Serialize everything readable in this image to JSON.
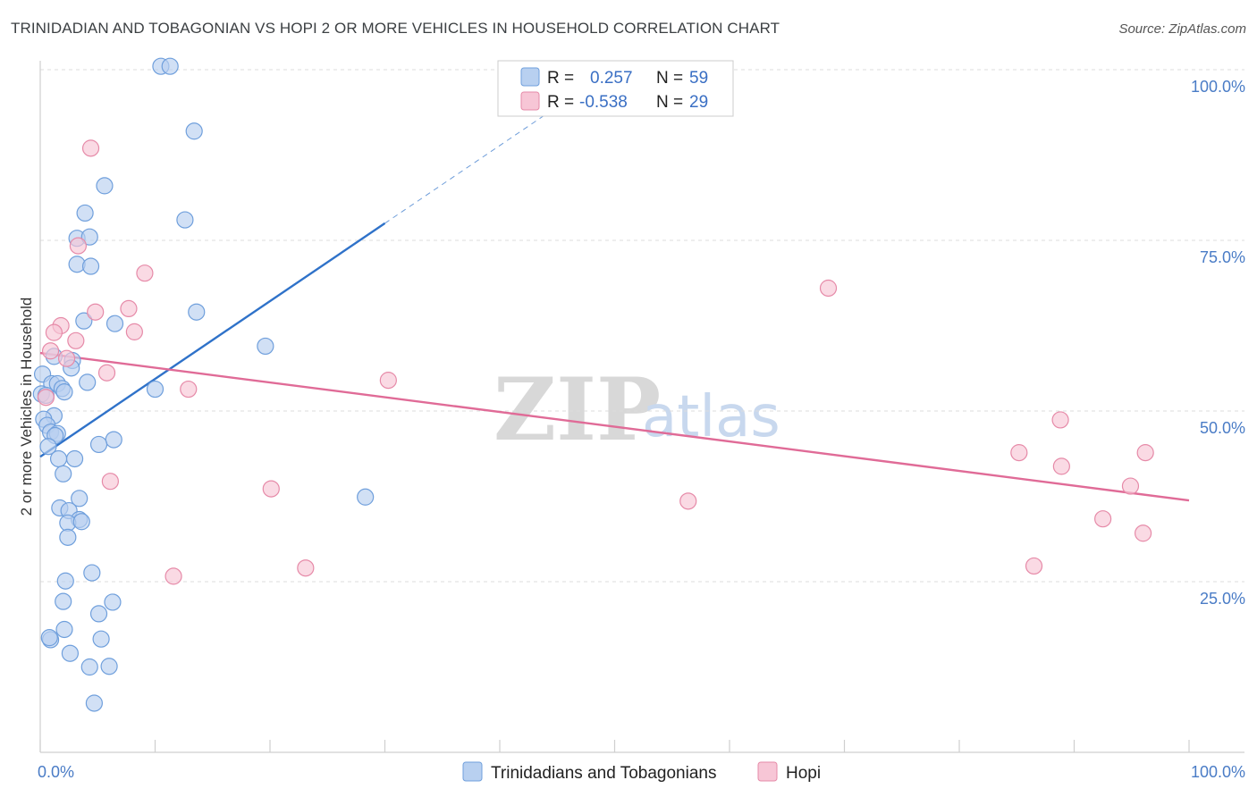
{
  "title": "TRINIDADIAN AND TOBAGONIAN VS HOPI 2 OR MORE VEHICLES IN HOUSEHOLD CORRELATION CHART",
  "source": "Source: ZipAtlas.com",
  "watermark": {
    "zip": "ZIP",
    "atlas": "atlas"
  },
  "colors": {
    "blue_fill": "#b8d0f0",
    "blue_stroke": "#6f9fdc",
    "blue_line": "#2f72c9",
    "pink_fill": "#f7c6d6",
    "pink_stroke": "#e68aa8",
    "pink_line": "#e06b97",
    "grid": "#dddddd",
    "tick_label": "#4a7cc6"
  },
  "chart_data": {
    "type": "scatter",
    "ylabel": "2 or more Vehicles in Household",
    "xlim": [
      0,
      100
    ],
    "ylim": [
      0,
      100
    ],
    "x_tick_labels": [
      "0.0%",
      "100.0%"
    ],
    "y_ticks": [
      {
        "value": 25,
        "label": "25.0%"
      },
      {
        "value": 50,
        "label": "50.0%"
      },
      {
        "value": 75,
        "label": "75.0%"
      },
      {
        "value": 100,
        "label": "100.0%"
      }
    ],
    "legend": [
      {
        "r_label": "R =",
        "r_value": "0.257",
        "n_label": "N =",
        "n_value": "59"
      },
      {
        "r_label": "R =",
        "r_value": "-0.538",
        "n_label": "N =",
        "n_value": "29"
      }
    ],
    "series": [
      {
        "name": "Trinidadians and Tobagonians",
        "color": "blue",
        "trend": {
          "x0": 0,
          "y0": 43.3,
          "x1": 30,
          "y1": 77.5,
          "dash_x1": 48,
          "dash_y1": 98
        },
        "points": [
          [
            10.5,
            100.5
          ],
          [
            11.3,
            100.5
          ],
          [
            13.4,
            91
          ],
          [
            5.6,
            83
          ],
          [
            3.9,
            79
          ],
          [
            12.6,
            78
          ],
          [
            3.2,
            75.3
          ],
          [
            4.3,
            75.5
          ],
          [
            3.2,
            71.5
          ],
          [
            4.4,
            71.2
          ],
          [
            13.6,
            64.5
          ],
          [
            3.8,
            63.2
          ],
          [
            6.5,
            62.8
          ],
          [
            19.6,
            59.5
          ],
          [
            1.2,
            58
          ],
          [
            2.8,
            57.4
          ],
          [
            2.7,
            56.3
          ],
          [
            0.2,
            55.4
          ],
          [
            4.1,
            54.2
          ],
          [
            1.0,
            54
          ],
          [
            1.5,
            54
          ],
          [
            1.9,
            53.3
          ],
          [
            2.1,
            52.8
          ],
          [
            10,
            53.2
          ],
          [
            0.1,
            52.5
          ],
          [
            0.5,
            52.3
          ],
          [
            1.2,
            49.3
          ],
          [
            0.3,
            48.8
          ],
          [
            0.6,
            47.9
          ],
          [
            0.9,
            46.9
          ],
          [
            1.5,
            46.7
          ],
          [
            1.3,
            46.4
          ],
          [
            6.4,
            45.8
          ],
          [
            5.1,
            45.1
          ],
          [
            0.7,
            44.8
          ],
          [
            1.6,
            43
          ],
          [
            3.0,
            43
          ],
          [
            2.0,
            40.8
          ],
          [
            3.4,
            37.2
          ],
          [
            28.3,
            37.4
          ],
          [
            1.7,
            35.8
          ],
          [
            2.5,
            35.4
          ],
          [
            3.4,
            34.1
          ],
          [
            2.4,
            33.6
          ],
          [
            2.4,
            31.5
          ],
          [
            4.5,
            26.3
          ],
          [
            2.2,
            25.1
          ],
          [
            2.0,
            22.1
          ],
          [
            6.3,
            22
          ],
          [
            5.1,
            20.3
          ],
          [
            2.1,
            18
          ],
          [
            0.9,
            16.5
          ],
          [
            5.3,
            16.6
          ],
          [
            2.6,
            14.5
          ],
          [
            6.0,
            12.6
          ],
          [
            4.3,
            12.5
          ],
          [
            4.7,
            7.2
          ],
          [
            0.8,
            16.8
          ],
          [
            3.6,
            33.8
          ]
        ]
      },
      {
        "name": "Hopi",
        "color": "pink",
        "trend": {
          "x0": 0,
          "y0": 58.5,
          "x1": 100,
          "y1": 36.9
        },
        "points": [
          [
            4.4,
            88.5
          ],
          [
            3.3,
            74.2
          ],
          [
            9.1,
            70.2
          ],
          [
            68.6,
            68
          ],
          [
            7.7,
            65
          ],
          [
            4.8,
            64.5
          ],
          [
            1.8,
            62.5
          ],
          [
            1.2,
            61.5
          ],
          [
            8.2,
            61.6
          ],
          [
            3.1,
            60.3
          ],
          [
            0.9,
            58.8
          ],
          [
            2.3,
            57.7
          ],
          [
            5.8,
            55.6
          ],
          [
            30.3,
            54.5
          ],
          [
            12.9,
            53.2
          ],
          [
            0.5,
            52
          ],
          [
            88.8,
            48.7
          ],
          [
            85.2,
            43.9
          ],
          [
            96.2,
            43.9
          ],
          [
            88.9,
            41.9
          ],
          [
            6.1,
            39.7
          ],
          [
            20.1,
            38.6
          ],
          [
            94.9,
            39
          ],
          [
            56.4,
            36.8
          ],
          [
            92.5,
            34.2
          ],
          [
            96,
            32.1
          ],
          [
            86.5,
            27.3
          ],
          [
            23.1,
            27
          ],
          [
            11.6,
            25.8
          ]
        ]
      }
    ]
  }
}
